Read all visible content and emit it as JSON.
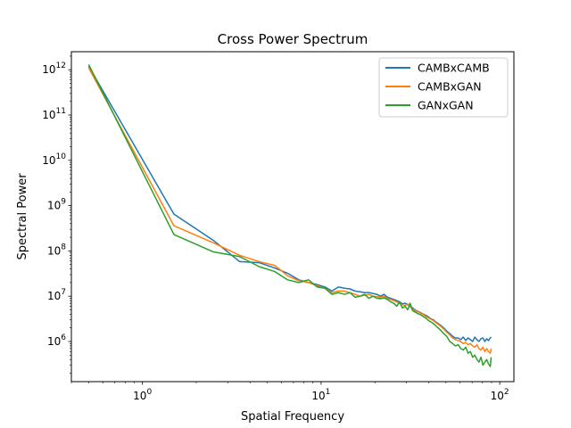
{
  "chart_data": {
    "type": "line",
    "title": "Cross Power Spectrum",
    "xlabel": "Spatial Frequency",
    "ylabel": "Spectral Power",
    "xscale": "log",
    "yscale": "log",
    "xlim": [
      0.4,
      120
    ],
    "ylim": [
      130000,
      2500000000000
    ],
    "grid": false,
    "legend_position": "top-right",
    "xticks": [
      {
        "value": 1,
        "base": "10",
        "exp": "0"
      },
      {
        "value": 10,
        "base": "10",
        "exp": "1"
      },
      {
        "value": 100,
        "base": "10",
        "exp": "2"
      }
    ],
    "yticks": [
      {
        "value": 1000000,
        "base": "10",
        "exp": "6"
      },
      {
        "value": 10000000,
        "base": "10",
        "exp": "7"
      },
      {
        "value": 100000000,
        "base": "10",
        "exp": "8"
      },
      {
        "value": 1000000000,
        "base": "10",
        "exp": "9"
      },
      {
        "value": 10000000000,
        "base": "10",
        "exp": "10"
      },
      {
        "value": 100000000000,
        "base": "10",
        "exp": "11"
      },
      {
        "value": 1000000000000,
        "base": "10",
        "exp": "12"
      }
    ],
    "series": [
      {
        "name": "CAMBxCAMB",
        "color": "#1f77b4",
        "x": [
          0.5,
          1.5,
          2.5,
          3.5,
          4.5,
          5.5,
          6.5,
          7.5,
          8.5,
          9.5,
          10.5,
          11.5,
          12.5,
          13.5,
          14.5,
          15.5,
          16.5,
          17.5,
          18.5,
          19.5,
          20.5,
          21.5,
          22.5,
          23.5,
          24.5,
          25.5,
          26.5,
          27.5,
          28.5,
          29.5,
          30.5,
          31.5,
          32.5,
          33.5,
          34.5,
          35.5,
          36.5,
          37.5,
          38.5,
          39.5,
          40.5,
          42.5,
          44.5,
          46.5,
          48.5,
          50.5,
          52.5,
          54.5,
          56.5,
          58.5,
          60.5,
          62.5,
          64.5,
          66.5,
          68.5,
          70.5,
          72.5,
          74.5,
          76.5,
          78.5,
          80.5,
          82.5,
          84.5,
          86.5,
          88.5,
          89.5
        ],
        "y": [
          1200000000000.0,
          650000000.0,
          170000000.0,
          58000000.0,
          55000000.0,
          42000000.0,
          32000000.0,
          23000000.0,
          20000000.0,
          18000000.0,
          16000000.0,
          13000000.0,
          16000000.0,
          15000000.0,
          14500000.0,
          13000000.0,
          12500000.0,
          12000000.0,
          12000000.0,
          11500000.0,
          11000000.0,
          10000000.0,
          11000000.0,
          9500000.0,
          9000000.0,
          8500000.0,
          8000000.0,
          7500000.0,
          6800000.0,
          7000000.0,
          6500000.0,
          6000000.0,
          5500000.0,
          5000000.0,
          4700000.0,
          4500000.0,
          4200000.0,
          4000000.0,
          3800000.0,
          3600000.0,
          3300000.0,
          3000000.0,
          2600000.0,
          2300000.0,
          2000000.0,
          1700000.0,
          1500000.0,
          1300000.0,
          1200000.0,
          1200000.0,
          1100000.0,
          1250000.0,
          1050000.0,
          1200000.0,
          1100000.0,
          1000000.0,
          1250000.0,
          1100000.0,
          1000000.0,
          1150000.0,
          1200000.0,
          1000000.0,
          1150000.0,
          1050000.0,
          1200000.0,
          1250000.0
        ]
      },
      {
        "name": "CAMBxGAN",
        "color": "#ff7f0e",
        "x": [
          0.5,
          1.5,
          2.5,
          3.5,
          4.5,
          5.5,
          6.5,
          7.5,
          8.5,
          9.5,
          10.5,
          11.5,
          12.5,
          13.5,
          14.5,
          15.5,
          16.5,
          17.5,
          18.5,
          19.5,
          20.5,
          21.5,
          22.5,
          23.5,
          24.5,
          25.5,
          26.5,
          27.5,
          28.5,
          29.5,
          30.5,
          31.5,
          32.5,
          33.5,
          34.5,
          35.5,
          36.5,
          37.5,
          38.5,
          39.5,
          40.5,
          42.5,
          44.5,
          46.5,
          48.5,
          50.5,
          52.5,
          54.5,
          56.5,
          58.5,
          60.5,
          62.5,
          64.5,
          66.5,
          68.5,
          70.5,
          72.5,
          74.5,
          76.5,
          78.5,
          80.5,
          82.5,
          84.5,
          86.5,
          88.5,
          89.5
        ],
        "y": [
          1100000000000.0,
          360000000.0,
          150000000.0,
          80000000.0,
          58000000.0,
          48000000.0,
          28000000.0,
          22000000.0,
          20000000.0,
          17000000.0,
          15000000.0,
          12000000.0,
          13000000.0,
          13000000.0,
          12000000.0,
          11000000.0,
          10000000.0,
          10500000.0,
          11000000.0,
          10000000.0,
          9800000.0,
          9500000.0,
          10000000.0,
          8800000.0,
          8500000.0,
          8000000.0,
          7500000.0,
          7000000.0,
          6500000.0,
          6200000.0,
          6800000.0,
          5800000.0,
          5200000.0,
          4800000.0,
          4600000.0,
          4400000.0,
          4100000.0,
          3900000.0,
          3600000.0,
          3400000.0,
          3200000.0,
          2900000.0,
          2500000.0,
          2200000.0,
          1900000.0,
          1600000.0,
          1400000.0,
          1200000.0,
          1100000.0,
          1050000.0,
          1000000.0,
          900000.0,
          950000.0,
          850000.0,
          900000.0,
          800000.0,
          750000.0,
          850000.0,
          700000.0,
          650000.0,
          750000.0,
          600000.0,
          700000.0,
          600000.0,
          550000.0,
          700000.0
        ]
      },
      {
        "name": "GANxGAN",
        "color": "#2ca02c",
        "x": [
          0.5,
          1.5,
          2.5,
          3.5,
          4.5,
          5.5,
          6.5,
          7.5,
          8.5,
          9.5,
          10.5,
          11.5,
          12.5,
          13.5,
          14.5,
          15.5,
          16.5,
          17.5,
          18.5,
          19.5,
          20.5,
          21.5,
          22.5,
          23.5,
          24.5,
          25.5,
          26.5,
          27.5,
          28.5,
          29.5,
          30.5,
          31.5,
          32.5,
          33.5,
          34.5,
          35.5,
          36.5,
          37.5,
          38.5,
          39.5,
          40.5,
          42.5,
          44.5,
          46.5,
          48.5,
          50.5,
          52.5,
          54.5,
          56.5,
          58.5,
          60.5,
          62.5,
          64.5,
          66.5,
          68.5,
          70.5,
          72.5,
          74.5,
          76.5,
          78.5,
          80.5,
          82.5,
          84.5,
          86.5,
          88.5,
          89.5
        ],
        "y": [
          1300000000000.0,
          230000000.0,
          95000000.0,
          75000000.0,
          45000000.0,
          35000000.0,
          23000000.0,
          20000000.0,
          23000000.0,
          16000000.0,
          15000000.0,
          11000000.0,
          12000000.0,
          11000000.0,
          12000000.0,
          9500000.0,
          10000000.0,
          11000000.0,
          9000000.0,
          10000000.0,
          9000000.0,
          8800000.0,
          9200000.0,
          8500000.0,
          7500000.0,
          7000000.0,
          6000000.0,
          7500000.0,
          5500000.0,
          6000000.0,
          5000000.0,
          7000000.0,
          4800000.0,
          4500000.0,
          4200000.0,
          4000000.0,
          3800000.0,
          3500000.0,
          3300000.0,
          3000000.0,
          2800000.0,
          2500000.0,
          2100000.0,
          1800000.0,
          1500000.0,
          1300000.0,
          1000000.0,
          900000.0,
          800000.0,
          850000.0,
          700000.0,
          650000.0,
          750000.0,
          550000.0,
          600000.0,
          450000.0,
          500000.0,
          400000.0,
          350000.0,
          450000.0,
          300000.0,
          350000.0,
          400000.0,
          320000.0,
          280000.0,
          450000.0
        ]
      }
    ]
  }
}
